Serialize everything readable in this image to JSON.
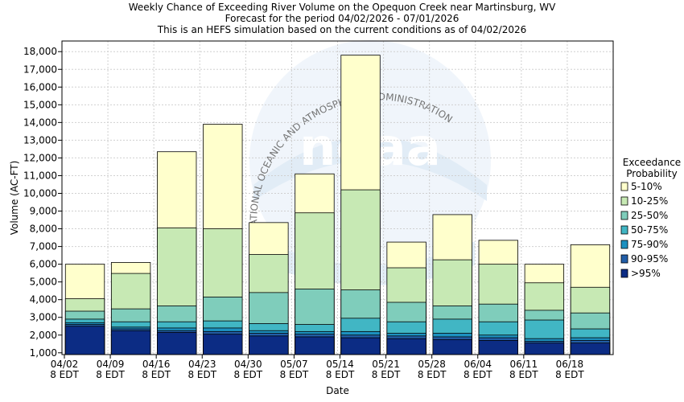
{
  "header": {
    "line1": "Weekly Chance of Exceeding River Volume on the Opequon Creek near Martinsburg, WV",
    "line2": "Forecast for the period 04/02/2026 - 07/01/2026",
    "line3": "This is an HEFS simulation based on the current conditions as of 04/02/2026"
  },
  "watermark": {
    "org_text": "NATIONAL OCEANIC AND ATMOSPHERIC ADMINISTRATION",
    "logo_text": "noaa"
  },
  "chart_data": {
    "type": "bar",
    "stacked": true,
    "xlabel": "Date",
    "ylabel": "Volume (AC-FT)",
    "ylim": [
      900,
      18600
    ],
    "yticks": [
      1000,
      2000,
      3000,
      4000,
      5000,
      6000,
      7000,
      8000,
      9000,
      10000,
      11000,
      12000,
      13000,
      14000,
      15000,
      16000,
      17000,
      18000
    ],
    "ytick_labels": [
      "1,000",
      "2,000",
      "3,000",
      "4,000",
      "5,000",
      "6,000",
      "7,000",
      "8,000",
      "9,000",
      "10,000",
      "11,000",
      "12,000",
      "13,000",
      "14,000",
      "15,000",
      "16,000",
      "17,000",
      "18,000"
    ],
    "xtick_labels": [
      {
        "date": "04/02",
        "tz": "8 EDT"
      },
      {
        "date": "04/09",
        "tz": "8 EDT"
      },
      {
        "date": "04/16",
        "tz": "8 EDT"
      },
      {
        "date": "04/23",
        "tz": "8 EDT"
      },
      {
        "date": "04/30",
        "tz": "8 EDT"
      },
      {
        "date": "05/07",
        "tz": "8 EDT"
      },
      {
        "date": "05/14",
        "tz": "8 EDT"
      },
      {
        "date": "05/21",
        "tz": "8 EDT"
      },
      {
        "date": "05/28",
        "tz": "8 EDT"
      },
      {
        "date": "06/04",
        "tz": "8 EDT"
      },
      {
        "date": "06/11",
        "tz": "8 EDT"
      },
      {
        "date": "06/18",
        "tz": "8 EDT"
      }
    ],
    "grid": true,
    "legend": {
      "title_line1": "Exceedance",
      "title_line2": "Probability",
      "placement": "right",
      "items": [
        {
          "label": "5-10%",
          "color": "#FFFFCC"
        },
        {
          "label": "10-25%",
          "color": "#C7E9B4"
        },
        {
          "label": "25-50%",
          "color": "#7FCDBB"
        },
        {
          "label": "50-75%",
          "color": "#41B6C4"
        },
        {
          "label": "75-90%",
          "color": "#1D91C0"
        },
        {
          "label": "90-95%",
          "color": "#225EA8"
        },
        {
          "label": ">95%",
          "color": "#0C2C84"
        }
      ]
    },
    "bars": [
      {
        "levels": [
          6000,
          4050,
          3350,
          2900,
          2700,
          2600,
          2500
        ]
      },
      {
        "levels": [
          6100,
          5480,
          3480,
          2750,
          2450,
          2350,
          2250
        ]
      },
      {
        "levels": [
          12350,
          8050,
          3650,
          2750,
          2400,
          2250,
          2150
        ]
      },
      {
        "levels": [
          13900,
          8000,
          4150,
          2800,
          2400,
          2200,
          2050
        ]
      },
      {
        "levels": [
          8350,
          6550,
          4400,
          2650,
          2250,
          2100,
          1950
        ]
      },
      {
        "levels": [
          11100,
          8900,
          4600,
          2600,
          2200,
          2050,
          1900
        ]
      },
      {
        "levels": [
          17800,
          10200,
          4550,
          2950,
          2200,
          2000,
          1850
        ]
      },
      {
        "levels": [
          7250,
          5800,
          3850,
          2750,
          2100,
          1950,
          1800
        ]
      },
      {
        "levels": [
          8800,
          6250,
          3650,
          2900,
          2100,
          1900,
          1750
        ]
      },
      {
        "levels": [
          7350,
          6000,
          3750,
          2750,
          2000,
          1850,
          1700
        ]
      },
      {
        "levels": [
          6000,
          4950,
          3400,
          2850,
          1800,
          1650,
          1550
        ]
      },
      {
        "levels": [
          7100,
          4700,
          3250,
          2350,
          1850,
          1700,
          1550
        ]
      }
    ]
  }
}
